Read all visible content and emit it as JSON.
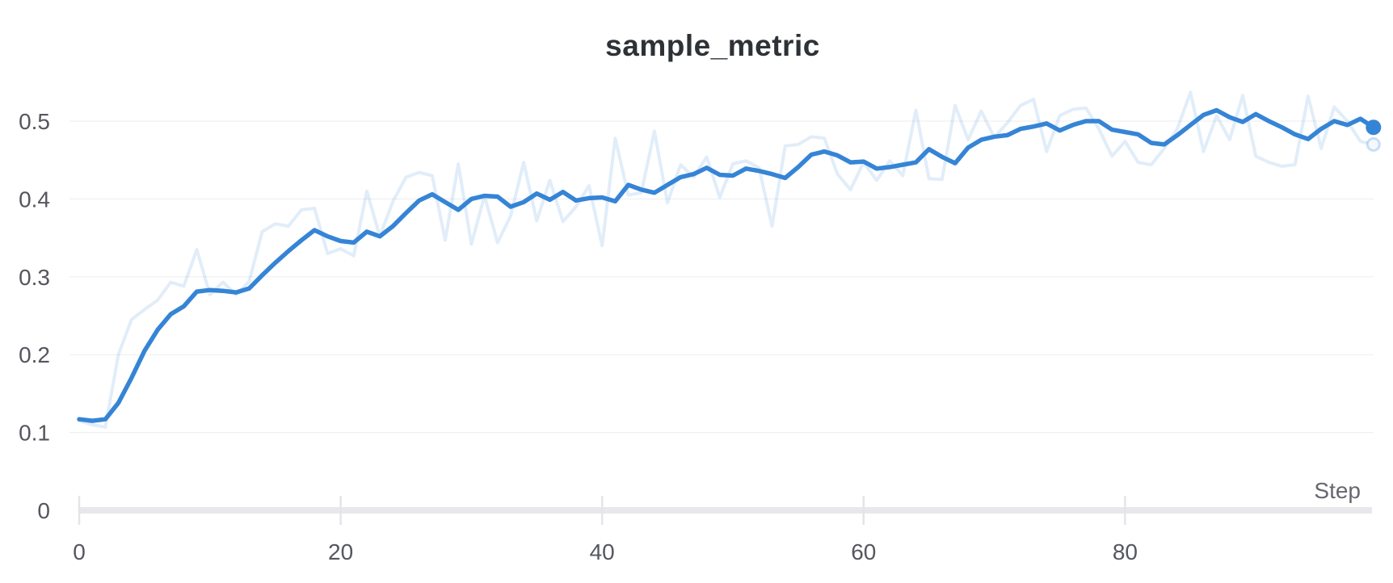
{
  "page": {
    "background": "#ffffff"
  },
  "chart_data": {
    "type": "line",
    "title": "sample_metric",
    "xlabel": "Step",
    "ylabel": "",
    "x_ticks": [
      0,
      20,
      40,
      60,
      80
    ],
    "x_tick_labels": [
      "0",
      "20",
      "40",
      "60",
      "80"
    ],
    "y_ticks": [
      0,
      0.1,
      0.2,
      0.3,
      0.4,
      0.5
    ],
    "y_tick_labels": [
      "0",
      "0.1",
      "0.2",
      "0.3",
      "0.4",
      "0.5"
    ],
    "xlim": [
      0,
      99
    ],
    "ylim": [
      0,
      0.55
    ],
    "grid": "horizontal",
    "legend": "none",
    "accent_color": "#3584d6",
    "grid_color": "#ededf1",
    "axis_bar_color": "#e8e8ec",
    "tick_label_color": "#55565e",
    "xlabel_color": "#66676f",
    "title_color": "#2e3236",
    "series": [
      {
        "name": "sample_metric (raw)",
        "role": "raw",
        "color": "#3584d6",
        "opacity": 0.15,
        "width": 4,
        "x_start": 0,
        "x_step": 1,
        "values": [
          0.115,
          0.11,
          0.107,
          0.2,
          0.245,
          0.258,
          0.27,
          0.293,
          0.288,
          0.335,
          0.277,
          0.293,
          0.277,
          0.294,
          0.358,
          0.368,
          0.365,
          0.386,
          0.388,
          0.33,
          0.336,
          0.327,
          0.41,
          0.352,
          0.397,
          0.428,
          0.434,
          0.43,
          0.347,
          0.445,
          0.342,
          0.404,
          0.344,
          0.378,
          0.447,
          0.372,
          0.424,
          0.371,
          0.39,
          0.417,
          0.34,
          0.478,
          0.405,
          0.408,
          0.487,
          0.395,
          0.444,
          0.428,
          0.454,
          0.402,
          0.445,
          0.449,
          0.44,
          0.365,
          0.468,
          0.47,
          0.48,
          0.478,
          0.432,
          0.412,
          0.447,
          0.424,
          0.449,
          0.43,
          0.514,
          0.426,
          0.425,
          0.52,
          0.476,
          0.513,
          0.479,
          0.498,
          0.52,
          0.528,
          0.461,
          0.507,
          0.515,
          0.517,
          0.49,
          0.455,
          0.474,
          0.447,
          0.444,
          0.465,
          0.49,
          0.537,
          0.461,
          0.507,
          0.476,
          0.533,
          0.455,
          0.447,
          0.442,
          0.444,
          0.532,
          0.465,
          0.518,
          0.5,
          0.474,
          0.47
        ]
      },
      {
        "name": "sample_metric (smoothed)",
        "role": "smoothed",
        "color": "#3584d6",
        "opacity": 1,
        "width": 5.5,
        "x_start": 0,
        "x_step": 1,
        "values": [
          0.117,
          0.115,
          0.117,
          0.138,
          0.17,
          0.205,
          0.232,
          0.252,
          0.262,
          0.281,
          0.283,
          0.282,
          0.28,
          0.285,
          0.302,
          0.318,
          0.333,
          0.347,
          0.36,
          0.352,
          0.346,
          0.344,
          0.358,
          0.352,
          0.365,
          0.382,
          0.398,
          0.406,
          0.396,
          0.386,
          0.4,
          0.404,
          0.403,
          0.39,
          0.396,
          0.407,
          0.399,
          0.409,
          0.398,
          0.401,
          0.402,
          0.397,
          0.418,
          0.412,
          0.408,
          0.418,
          0.428,
          0.432,
          0.44,
          0.431,
          0.43,
          0.439,
          0.436,
          0.432,
          0.427,
          0.441,
          0.457,
          0.461,
          0.456,
          0.447,
          0.448,
          0.439,
          0.441,
          0.444,
          0.447,
          0.464,
          0.454,
          0.446,
          0.466,
          0.476,
          0.48,
          0.482,
          0.49,
          0.493,
          0.497,
          0.488,
          0.495,
          0.5,
          0.5,
          0.489,
          0.486,
          0.483,
          0.472,
          0.47,
          0.482,
          0.495,
          0.508,
          0.514,
          0.505,
          0.499,
          0.509,
          0.5,
          0.492,
          0.483,
          0.477,
          0.49,
          0.5,
          0.495,
          0.503,
          0.492
        ]
      }
    ],
    "end_markers": {
      "smoothed": {
        "x": 99,
        "y": 0.492,
        "style": "filled"
      },
      "raw": {
        "x": 99,
        "y": 0.47,
        "style": "hollow"
      }
    }
  }
}
